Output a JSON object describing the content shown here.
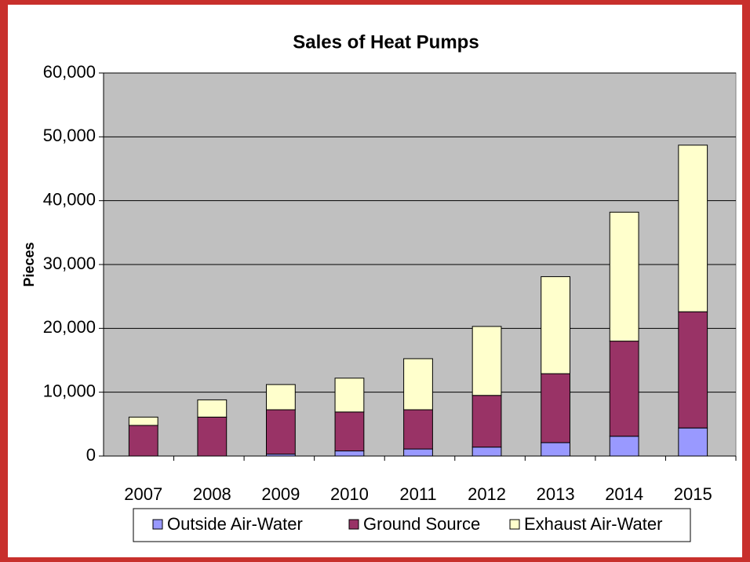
{
  "chart_data": {
    "type": "stacked-bar",
    "title": "Sales of Heat Pumps",
    "y_label": "Pieces",
    "categories": [
      "2007",
      "2008",
      "2009",
      "2010",
      "2011",
      "2012",
      "2013",
      "2014",
      "2015"
    ],
    "series": [
      {
        "name": "Outside Air-Water",
        "color": "#9999ff",
        "values": [
          0,
          0,
          300,
          800,
          1100,
          1400,
          2100,
          3100,
          4400
        ]
      },
      {
        "name": "Ground Source",
        "color": "#993366",
        "values": [
          4800,
          6100,
          6950,
          6100,
          6150,
          8100,
          10800,
          14900,
          18200
        ]
      },
      {
        "name": "Exhaust Air-Water",
        "color": "#ffffcc",
        "values": [
          1300,
          2700,
          3950,
          5300,
          8000,
          10800,
          15200,
          20200,
          26100
        ]
      }
    ],
    "ylim": [
      0,
      60000
    ],
    "yticks": [
      0,
      {
        "value": 10000,
        "label": "10,000"
      },
      {
        "value": 20000,
        "label": "20,000"
      },
      {
        "value": 30000,
        "label": "30,000"
      },
      {
        "value": 40000,
        "label": "40,000"
      },
      {
        "value": 50000,
        "label": "50,000"
      },
      {
        "value": 60000,
        "label": "60,000"
      }
    ],
    "grid": true,
    "plot_background": "#c0c0c0",
    "legend": "bottom"
  }
}
